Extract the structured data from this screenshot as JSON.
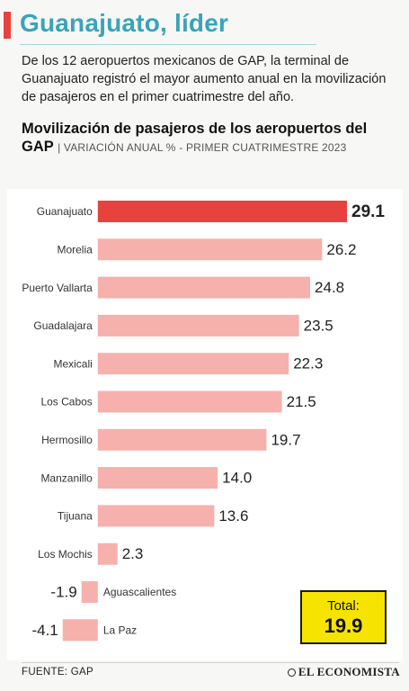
{
  "headline": "Guanajuato, líder",
  "intro": "De los 12 aeropuertos mexicanos de GAP, la terminal de Guanajuato registró el mayor aumento anual en la movilización de pasajeros en el primer cuatrimestre del año.",
  "chart_title": "Movilización de pasajeros de los aeropuertos del GAP",
  "chart_subtitle": "| VARIACIÓN ANUAL % - PRIMER CUATRIMESTRE 2023",
  "total": {
    "label": "Total:",
    "value": "19.9"
  },
  "source": "FUENTE:  GAP",
  "brand": "EL ECONOMISTA",
  "colors": {
    "highlight": "#e8423f",
    "bar": "#f6b1ac",
    "title": "#3aa4b8",
    "total_bg": "#f6e400"
  },
  "chart_data": {
    "type": "bar",
    "orientation": "horizontal",
    "categories": [
      "Guanajuato",
      "Morelia",
      "Puerto Vallarta",
      "Guadalajara",
      "Mexicali",
      "Los Cabos",
      "Hermosillo",
      "Manzanillo",
      "Tijuana",
      "Los Mochis",
      "Aguascalientes",
      "La Paz"
    ],
    "values": [
      29.1,
      26.2,
      24.8,
      23.5,
      22.3,
      21.5,
      19.7,
      14.0,
      13.6,
      2.3,
      -1.9,
      -4.1
    ],
    "labels": [
      "29.1",
      "26.2",
      "24.8",
      "23.5",
      "22.3",
      "21.5",
      "19.7",
      "14.0",
      "13.6",
      "2.3",
      "-1.9",
      "-4.1"
    ],
    "highlight": "Guanajuato",
    "xlim": [
      -4.6,
      29.1
    ]
  }
}
